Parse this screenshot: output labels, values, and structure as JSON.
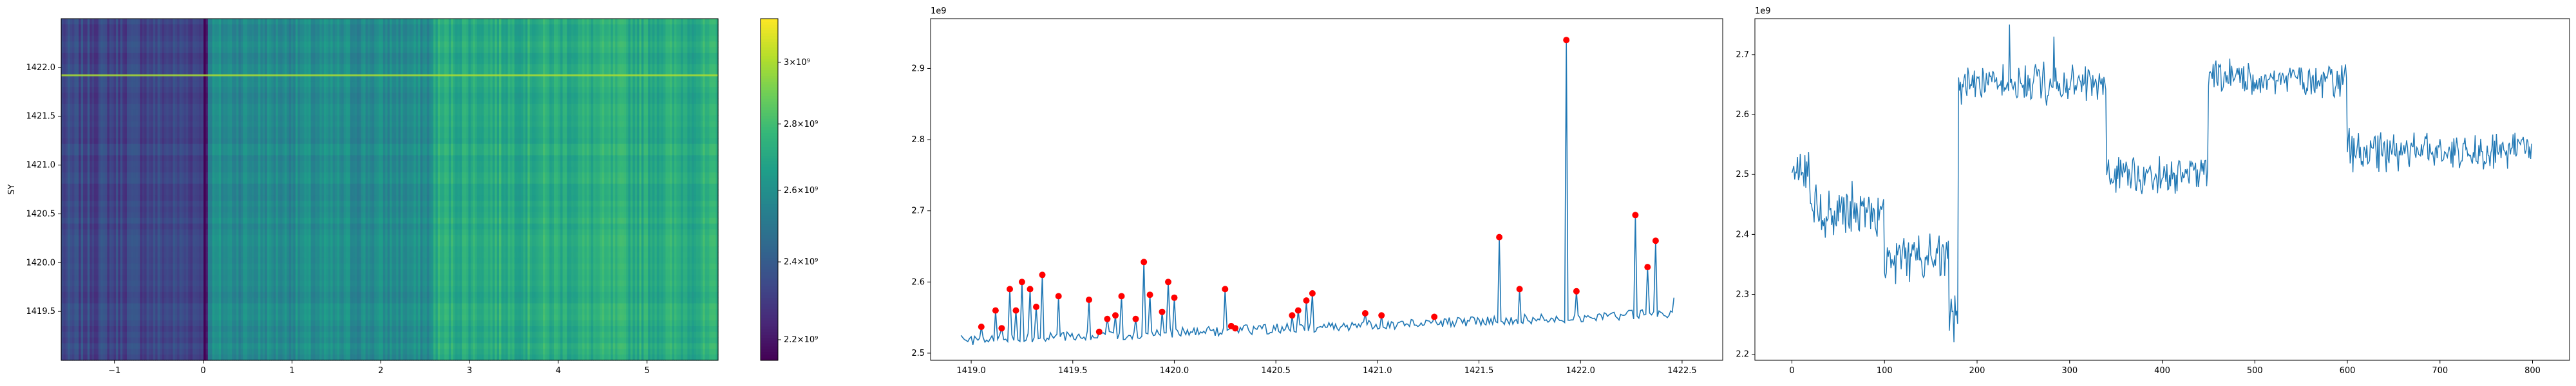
{
  "chart_data": [
    {
      "type": "heatmap",
      "colormap": "viridis",
      "ylabel": "SY",
      "xlim": [
        -1.6,
        5.8
      ],
      "ylim": [
        1419.0,
        1422.5
      ],
      "xticks": [
        -1,
        0,
        1,
        2,
        3,
        4,
        5
      ],
      "xtick_labels": [
        "−1",
        "0",
        "1",
        "2",
        "3",
        "4",
        "5"
      ],
      "yticks": [
        1419.5,
        1420.0,
        1420.5,
        1421.0,
        1421.5,
        1422.0
      ],
      "ytick_labels": [
        "1419.5",
        "1420.0",
        "1420.5",
        "1421.0",
        "1421.5",
        "1422.0"
      ],
      "colorbar": {
        "scale": "log",
        "vmin": 2150000000.0,
        "vmax": 3150000000.0,
        "ticks": [
          2200000000.0,
          2400000000.0,
          2600000000.0,
          2800000000.0,
          3000000000.0
        ],
        "tick_labels": [
          "2.2×10⁹",
          "2.4×10⁹",
          "2.6×10⁹",
          "2.8×10⁹",
          "3×10⁹"
        ]
      },
      "column_bands": [
        {
          "x": [
            -1.6,
            0.0
          ],
          "value": 2330000000.0
        },
        {
          "x": [
            0.0,
            0.05
          ],
          "value": 2180000000.0
        },
        {
          "x": [
            0.05,
            2.6
          ],
          "value": 2580000000.0
        },
        {
          "x": [
            2.6,
            5.8
          ],
          "value": 2720000000.0
        }
      ],
      "highlight_rows": [
        {
          "y": 1421.92,
          "value": 3000000000.0
        }
      ]
    },
    {
      "type": "line",
      "offset_label": "1e9",
      "xlim": [
        1418.8,
        1422.7
      ],
      "ylim": [
        2.49,
        2.97
      ],
      "xticks": [
        1419.0,
        1419.5,
        1420.0,
        1420.5,
        1421.0,
        1421.5,
        1422.0,
        1422.5
      ],
      "xtick_labels": [
        "1419.0",
        "1419.5",
        "1420.0",
        "1420.5",
        "1421.0",
        "1421.5",
        "1422.0",
        "1422.5"
      ],
      "yticks": [
        2.5,
        2.6,
        2.7,
        2.8,
        2.9
      ],
      "ytick_labels": [
        "2.5",
        "2.6",
        "2.7",
        "2.8",
        "2.9"
      ],
      "series": [
        {
          "color": "#1f77b4",
          "peaks": [
            {
              "x": 1419.05,
              "y": 2.537
            },
            {
              "x": 1419.12,
              "y": 2.56
            },
            {
              "x": 1419.15,
              "y": 2.535
            },
            {
              "x": 1419.19,
              "y": 2.59
            },
            {
              "x": 1419.22,
              "y": 2.56
            },
            {
              "x": 1419.25,
              "y": 2.6
            },
            {
              "x": 1419.29,
              "y": 2.59
            },
            {
              "x": 1419.32,
              "y": 2.565
            },
            {
              "x": 1419.35,
              "y": 2.61
            },
            {
              "x": 1419.43,
              "y": 2.58
            },
            {
              "x": 1419.58,
              "y": 2.575
            },
            {
              "x": 1419.63,
              "y": 2.53
            },
            {
              "x": 1419.67,
              "y": 2.548
            },
            {
              "x": 1419.71,
              "y": 2.553
            },
            {
              "x": 1419.74,
              "y": 2.58
            },
            {
              "x": 1419.81,
              "y": 2.548
            },
            {
              "x": 1419.85,
              "y": 2.628
            },
            {
              "x": 1419.88,
              "y": 2.582
            },
            {
              "x": 1419.94,
              "y": 2.558
            },
            {
              "x": 1419.97,
              "y": 2.6
            },
            {
              "x": 1420.0,
              "y": 2.578
            },
            {
              "x": 1420.25,
              "y": 2.59
            },
            {
              "x": 1420.28,
              "y": 2.538
            },
            {
              "x": 1420.3,
              "y": 2.535
            },
            {
              "x": 1420.58,
              "y": 2.553
            },
            {
              "x": 1420.61,
              "y": 2.56
            },
            {
              "x": 1420.65,
              "y": 2.574
            },
            {
              "x": 1420.68,
              "y": 2.584
            },
            {
              "x": 1420.94,
              "y": 2.556
            },
            {
              "x": 1421.02,
              "y": 2.553
            },
            {
              "x": 1421.28,
              "y": 2.551
            },
            {
              "x": 1421.6,
              "y": 2.663
            },
            {
              "x": 1421.7,
              "y": 2.59
            },
            {
              "x": 1421.93,
              "y": 2.94
            },
            {
              "x": 1421.98,
              "y": 2.587
            },
            {
              "x": 1422.27,
              "y": 2.694
            },
            {
              "x": 1422.33,
              "y": 2.621
            },
            {
              "x": 1422.37,
              "y": 2.658
            }
          ],
          "end": [
            1422.46,
            2.578
          ]
        }
      ],
      "markers": {
        "color": "red",
        "on": "peaks"
      }
    },
    {
      "type": "line",
      "offset_label": "1e9",
      "xlim": [
        -40,
        840
      ],
      "ylim": [
        2.19,
        2.76
      ],
      "xticks": [
        0,
        100,
        200,
        300,
        400,
        500,
        600,
        700,
        800
      ],
      "xtick_labels": [
        "0",
        "100",
        "200",
        "300",
        "400",
        "500",
        "600",
        "700",
        "800"
      ],
      "yticks": [
        2.2,
        2.3,
        2.4,
        2.5,
        2.6,
        2.7
      ],
      "ytick_labels": [
        "2.2",
        "2.3",
        "2.4",
        "2.5",
        "2.6",
        "2.7"
      ],
      "series": [
        {
          "color": "#1f77b4",
          "n_points": 800,
          "segments": [
            {
              "x": [
                0,
                20
              ],
              "mean": 2.5,
              "noise": 0.04
            },
            {
              "x": [
                20,
                100
              ],
              "mean": 2.44,
              "noise": 0.05
            },
            {
              "x": [
                100,
                170
              ],
              "mean": 2.36,
              "noise": 0.05
            },
            {
              "x": [
                170,
                180
              ],
              "mean": 2.27,
              "noise": 0.05
            },
            {
              "x": [
                180,
                340
              ],
              "mean": 2.65,
              "noise": 0.04
            },
            {
              "x": [
                340,
                450
              ],
              "mean": 2.5,
              "noise": 0.035
            },
            {
              "x": [
                450,
                600
              ],
              "mean": 2.66,
              "noise": 0.035
            },
            {
              "x": [
                600,
                800
              ],
              "mean": 2.54,
              "noise": 0.04
            }
          ],
          "extremes": [
            {
              "x": 175,
              "y": 2.22
            },
            {
              "x": 235,
              "y": 2.75
            },
            {
              "x": 283,
              "y": 2.73
            }
          ]
        }
      ]
    }
  ]
}
